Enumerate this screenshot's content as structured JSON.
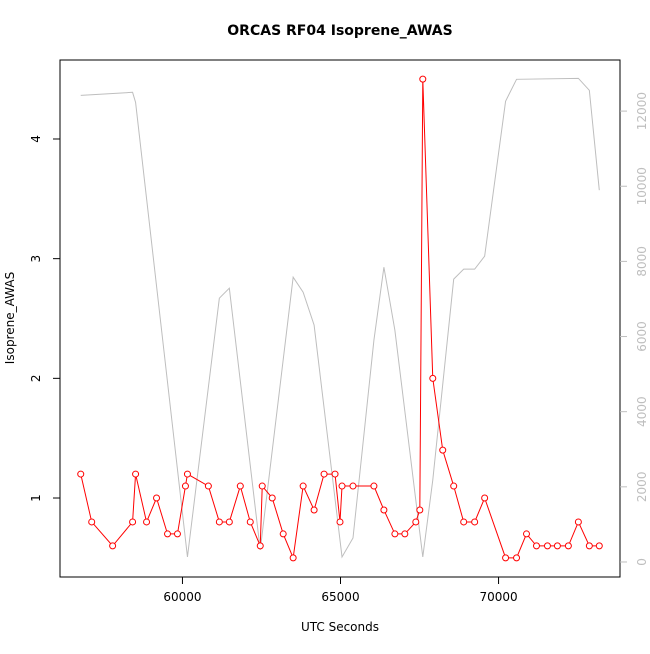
{
  "chart_data": {
    "type": "line",
    "title": "ORCAS RF04 Isoprene_AWAS",
    "x_label": "UTC Seconds",
    "y_label": "Isoprene_AWAS",
    "xlim": [
      56126,
      73842
    ],
    "xticks": [
      60000,
      65000,
      70000
    ],
    "ylim": [
      0.34,
      4.66
    ],
    "yticks": [
      1,
      2,
      3,
      4
    ],
    "y2lim": [
      -400,
      13360
    ],
    "y2ticks": [
      0,
      2000,
      4000,
      6000,
      8000,
      10000,
      12000
    ],
    "series": [
      {
        "color": "#bebebe",
        "axis": "y2",
        "markers": false,
        "x": [
          56782,
          58422,
          58517,
          60158,
          61167,
          61483,
          62461,
          63502,
          63818,
          64165,
          65048,
          65395,
          66057,
          66373,
          66720,
          67603,
          67919,
          68581,
          68897,
          69244,
          69560,
          70222,
          70569,
          72525,
          72872,
          73187
        ],
        "values": [
          12420,
          12500,
          12234,
          133,
          7021,
          7287,
          319,
          7580,
          7181,
          6303,
          133,
          638,
          5904,
          7846,
          6170,
          133,
          2181,
          7527,
          7793,
          7793,
          8138,
          12261,
          12846,
          12872,
          12553,
          9894
        ]
      },
      {
        "color": "#ff0000",
        "markers": true,
        "x": [
          56782,
          57129,
          57791,
          58422,
          58517,
          58864,
          59180,
          59527,
          59842,
          60095,
          60158,
          60820,
          61167,
          61483,
          61830,
          62145,
          62461,
          62524,
          62840,
          63187,
          63502,
          63818,
          64165,
          64480,
          64827,
          64984,
          65048,
          65395,
          66057,
          66373,
          66720,
          67035,
          67382,
          67509,
          67603,
          67919,
          68234,
          68581,
          68897,
          69244,
          69560,
          70222,
          70569,
          70884,
          71200,
          71547,
          71862,
          72209,
          72525,
          72872,
          73187
        ],
        "values": [
          1.2,
          0.8,
          0.6,
          0.8,
          1.2,
          0.8,
          1.0,
          0.7,
          0.7,
          1.1,
          1.2,
          1.1,
          0.8,
          0.8,
          1.1,
          0.8,
          0.6,
          1.1,
          1.0,
          0.7,
          0.5,
          1.1,
          0.9,
          1.2,
          1.2,
          0.8,
          1.1,
          1.1,
          1.1,
          0.9,
          0.7,
          0.7,
          0.8,
          0.9,
          4.5,
          2.0,
          1.4,
          1.1,
          0.8,
          0.8,
          1.0,
          0.5,
          0.5,
          0.7,
          0.6,
          0.6,
          0.6,
          0.6,
          0.8,
          0.6,
          0.6
        ]
      }
    ]
  }
}
